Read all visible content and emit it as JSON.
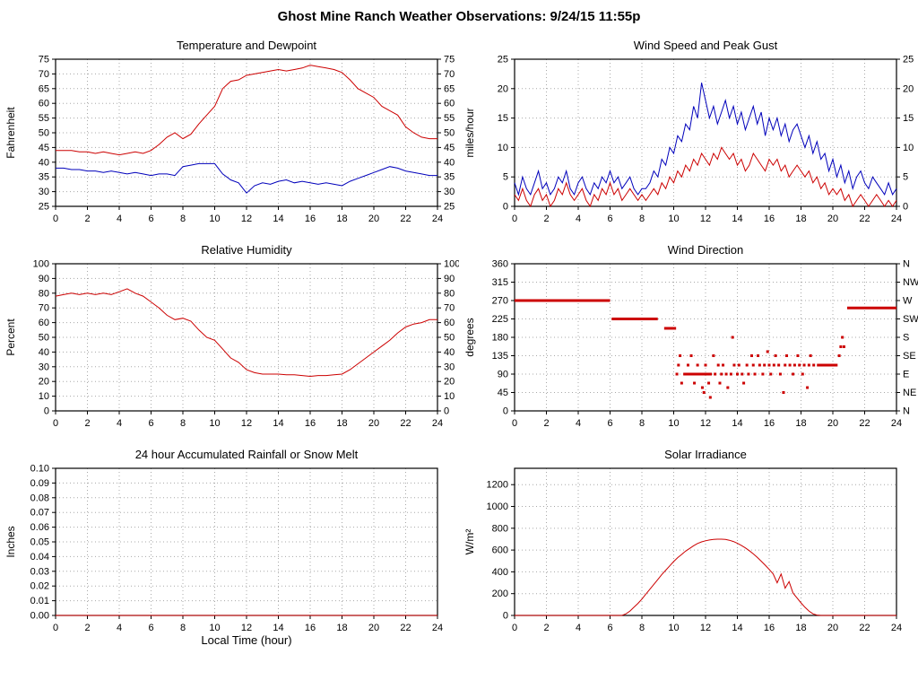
{
  "title": "Ghost Mine Ranch Weather Observations: 9/24/15 11:55p",
  "chart_data": [
    {
      "type": "line",
      "title": "Temperature and Dewpoint",
      "ylabel": "Fahrenheit",
      "xlabel": "",
      "xlim": [
        0,
        24
      ],
      "ylim": [
        25,
        75
      ],
      "xticks": [
        0,
        2,
        4,
        6,
        8,
        10,
        12,
        14,
        16,
        18,
        20,
        22,
        24
      ],
      "ytick_values": [
        25,
        30,
        35,
        40,
        45,
        50,
        55,
        60,
        65,
        70,
        75
      ],
      "ytick_labels": [
        "25",
        "30",
        "35",
        "40",
        "45",
        "50",
        "55",
        "60",
        "65",
        "70",
        "75"
      ],
      "right_tick_labels": [
        "25",
        "30",
        "35",
        "40",
        "45",
        "50",
        "55",
        "60",
        "65",
        "70",
        "75"
      ],
      "series": [
        {
          "name": "Temperature",
          "color": "#cc0000",
          "x0": 0,
          "dx": 0.5,
          "y": [
            44,
            44,
            44,
            43.5,
            43.5,
            43,
            43.5,
            43,
            42.5,
            43,
            43.5,
            43,
            44,
            46,
            48.5,
            50,
            48,
            49.5,
            53,
            56,
            59,
            65,
            67.5,
            68,
            69.5,
            70,
            70.5,
            71,
            71.5,
            71,
            71.5,
            72,
            73,
            72.5,
            72,
            71.5,
            70.5,
            68,
            65,
            63.5,
            62,
            59,
            57.5,
            56,
            52,
            50,
            48.5,
            48,
            48
          ]
        },
        {
          "name": "Dewpoint",
          "color": "#0000bb",
          "x0": 0,
          "dx": 0.5,
          "y": [
            38,
            38,
            37.5,
            37.5,
            37,
            37,
            36.5,
            37,
            36.5,
            36,
            36.5,
            36,
            35.5,
            36,
            36,
            35.5,
            38.5,
            39,
            39.5,
            39.5,
            39.5,
            36,
            34,
            33,
            29.5,
            32,
            33,
            32.5,
            33.5,
            34,
            33,
            33.5,
            33,
            32.5,
            33,
            32.5,
            32,
            33.5,
            34.5,
            35.5,
            36.5,
            37.5,
            38.5,
            38,
            37,
            36.5,
            36,
            35.5,
            35.5
          ]
        }
      ]
    },
    {
      "type": "line",
      "title": "Wind Speed and Peak Gust",
      "ylabel": "miles/hour",
      "xlabel": "",
      "xlim": [
        0,
        24
      ],
      "ylim": [
        0,
        25
      ],
      "xticks": [
        0,
        2,
        4,
        6,
        8,
        10,
        12,
        14,
        16,
        18,
        20,
        22,
        24
      ],
      "ytick_values": [
        0,
        5,
        10,
        15,
        20,
        25
      ],
      "ytick_labels": [
        "0",
        "5",
        "10",
        "15",
        "20",
        "25"
      ],
      "right_tick_labels": [
        "0",
        "5",
        "10",
        "15",
        "20",
        "25"
      ],
      "series": [
        {
          "name": "Peak Gust",
          "color": "#0000bb",
          "x0": 0,
          "dx": 0.25,
          "y": [
            4,
            2,
            5,
            3,
            2,
            4,
            6,
            3,
            4,
            2,
            3,
            5,
            4,
            6,
            3,
            2,
            4,
            5,
            3,
            2,
            4,
            3,
            5,
            4,
            6,
            4,
            5,
            3,
            4,
            5,
            3,
            2,
            3,
            3,
            4,
            6,
            5,
            8,
            7,
            10,
            9,
            12,
            11,
            14,
            13,
            17,
            15,
            21,
            18,
            15,
            17,
            14,
            16,
            18,
            15,
            17,
            14,
            16,
            13,
            15,
            17,
            14,
            16,
            12,
            15,
            13,
            15,
            12,
            14,
            11,
            13,
            14,
            12,
            10,
            12,
            9,
            11,
            8,
            9,
            6,
            8,
            5,
            7,
            4,
            6,
            3,
            5,
            6,
            4,
            3,
            5,
            4,
            3,
            2,
            4,
            2,
            3
          ]
        },
        {
          "name": "Wind Speed",
          "color": "#cc0000",
          "x0": 0,
          "dx": 0.25,
          "y": [
            2,
            1,
            3,
            1,
            0,
            2,
            3,
            1,
            2,
            0,
            1,
            3,
            2,
            4,
            2,
            1,
            2,
            3,
            1,
            0,
            2,
            1,
            3,
            2,
            4,
            2,
            3,
            1,
            2,
            3,
            2,
            1,
            2,
            1,
            2,
            3,
            2,
            4,
            3,
            5,
            4,
            6,
            5,
            7,
            6,
            8,
            7,
            9,
            8,
            7,
            9,
            8,
            10,
            9,
            8,
            9,
            7,
            8,
            6,
            7,
            9,
            8,
            7,
            6,
            8,
            7,
            8,
            6,
            7,
            5,
            6,
            7,
            6,
            5,
            6,
            4,
            5,
            3,
            4,
            2,
            3,
            2,
            3,
            1,
            2,
            0,
            1,
            2,
            1,
            0,
            1,
            2,
            1,
            0,
            1,
            0,
            1
          ]
        }
      ]
    },
    {
      "type": "line",
      "title": "Relative Humidity",
      "ylabel": "Percent",
      "xlabel": "",
      "xlim": [
        0,
        24
      ],
      "ylim": [
        0,
        100
      ],
      "xticks": [
        0,
        2,
        4,
        6,
        8,
        10,
        12,
        14,
        16,
        18,
        20,
        22,
        24
      ],
      "ytick_values": [
        0,
        10,
        20,
        30,
        40,
        50,
        60,
        70,
        80,
        90,
        100
      ],
      "ytick_labels": [
        "0",
        "10",
        "20",
        "30",
        "40",
        "50",
        "60",
        "70",
        "80",
        "90",
        "100"
      ],
      "right_tick_labels": [
        "0",
        "10",
        "20",
        "30",
        "40",
        "50",
        "60",
        "70",
        "80",
        "90",
        "100"
      ],
      "series": [
        {
          "name": "Relative Humidity",
          "color": "#cc0000",
          "x0": 0,
          "dx": 0.5,
          "y": [
            78,
            79,
            80,
            79,
            80,
            79,
            80,
            79,
            81,
            83,
            80,
            78,
            74,
            70,
            65,
            62,
            63,
            61,
            55,
            50,
            48,
            42,
            36,
            33,
            28,
            26,
            25,
            25,
            25,
            24.5,
            24.5,
            24,
            23.5,
            24,
            24,
            24.5,
            25,
            28,
            32,
            36,
            40,
            44,
            48,
            53,
            57,
            59,
            60,
            62,
            62
          ]
        }
      ]
    },
    {
      "type": "scatter",
      "title": "Wind Direction",
      "ylabel": "degrees",
      "xlabel": "",
      "xlim": [
        0,
        24
      ],
      "ylim": [
        0,
        360
      ],
      "xticks": [
        0,
        2,
        4,
        6,
        8,
        10,
        12,
        14,
        16,
        18,
        20,
        22,
        24
      ],
      "ytick_values": [
        0,
        45,
        90,
        135,
        180,
        225,
        270,
        315,
        360
      ],
      "ytick_labels": [
        "0",
        "45",
        "90",
        "135",
        "180",
        "225",
        "270",
        "315",
        "360"
      ],
      "right_tick_labels": [
        "N",
        "NE",
        "E",
        "SE",
        "S",
        "SW",
        "W",
        "NW",
        "N"
      ],
      "marker_color": "#cc0000",
      "segments": [
        [
          0,
          6,
          270
        ],
        [
          6.1,
          9,
          225
        ],
        [
          9.4,
          10.15,
          202
        ],
        [
          10.6,
          12.4,
          90
        ],
        [
          19,
          20.3,
          112
        ],
        [
          20.9,
          24,
          252
        ]
      ],
      "points": [
        [
          10.2,
          90
        ],
        [
          10.3,
          112
        ],
        [
          10.4,
          135
        ],
        [
          10.5,
          68
        ],
        [
          10.9,
          112
        ],
        [
          11.1,
          135
        ],
        [
          11.3,
          68
        ],
        [
          11.5,
          112
        ],
        [
          11.8,
          57
        ],
        [
          11.9,
          45
        ],
        [
          12,
          112
        ],
        [
          12.2,
          68
        ],
        [
          12.3,
          33
        ],
        [
          12.5,
          135
        ],
        [
          12.6,
          90
        ],
        [
          12.8,
          112
        ],
        [
          12.9,
          68
        ],
        [
          13,
          90
        ],
        [
          13.1,
          112
        ],
        [
          13.3,
          90
        ],
        [
          13.4,
          57
        ],
        [
          13.6,
          90
        ],
        [
          13.7,
          180
        ],
        [
          13.8,
          112
        ],
        [
          14,
          90
        ],
        [
          14.1,
          112
        ],
        [
          14.3,
          90
        ],
        [
          14.4,
          68
        ],
        [
          14.6,
          112
        ],
        [
          14.7,
          90
        ],
        [
          14.9,
          135
        ],
        [
          15,
          112
        ],
        [
          15.1,
          90
        ],
        [
          15.3,
          135
        ],
        [
          15.4,
          112
        ],
        [
          15.6,
          90
        ],
        [
          15.7,
          112
        ],
        [
          15.9,
          145
        ],
        [
          16,
          112
        ],
        [
          16.1,
          90
        ],
        [
          16.3,
          112
        ],
        [
          16.4,
          135
        ],
        [
          16.6,
          112
        ],
        [
          16.7,
          90
        ],
        [
          16.9,
          45
        ],
        [
          17,
          112
        ],
        [
          17.1,
          135
        ],
        [
          17.3,
          112
        ],
        [
          17.5,
          90
        ],
        [
          17.6,
          112
        ],
        [
          17.8,
          135
        ],
        [
          17.9,
          112
        ],
        [
          18.1,
          90
        ],
        [
          18.2,
          112
        ],
        [
          18.4,
          57
        ],
        [
          18.5,
          112
        ],
        [
          18.6,
          135
        ],
        [
          18.8,
          112
        ],
        [
          20.4,
          135
        ],
        [
          20.5,
          157
        ],
        [
          20.6,
          180
        ],
        [
          20.7,
          157
        ]
      ]
    },
    {
      "type": "line",
      "title": "24 hour Accumulated Rainfall or Snow Melt",
      "ylabel": "Inches",
      "xlabel": "Local Time (hour)",
      "xlim": [
        0,
        24
      ],
      "ylim": [
        0,
        0.1
      ],
      "xticks": [
        0,
        2,
        4,
        6,
        8,
        10,
        12,
        14,
        16,
        18,
        20,
        22,
        24
      ],
      "ytick_values": [
        0,
        0.01,
        0.02,
        0.03,
        0.04,
        0.05,
        0.06,
        0.07,
        0.08,
        0.09,
        0.1
      ],
      "ytick_labels": [
        "0.00",
        "0.01",
        "0.02",
        "0.03",
        "0.04",
        "0.05",
        "0.06",
        "0.07",
        "0.08",
        "0.09",
        "0.10"
      ],
      "right_tick_labels": null,
      "series": [
        {
          "name": "Accumulated Rainfall",
          "color": "#cc0000",
          "x0": 0,
          "dx": 24,
          "y": [
            0,
            0
          ]
        }
      ]
    },
    {
      "type": "line",
      "title": "Solar Irradiance",
      "ylabel": "W/m²",
      "xlabel": "",
      "xlim": [
        0,
        24
      ],
      "ylim": [
        0,
        1350
      ],
      "xticks": [
        0,
        2,
        4,
        6,
        8,
        10,
        12,
        14,
        16,
        18,
        20,
        22,
        24
      ],
      "ytick_values": [
        0,
        200,
        400,
        600,
        800,
        1000,
        1200
      ],
      "ytick_labels": [
        "0",
        "200",
        "400",
        "600",
        "800",
        "1000",
        "1200"
      ],
      "right_tick_labels": null,
      "series": [
        {
          "name": "Solar Irradiance",
          "color": "#cc0000",
          "x0": 0,
          "dx": 0.25,
          "y": [
            0,
            0,
            0,
            0,
            0,
            0,
            0,
            0,
            0,
            0,
            0,
            0,
            0,
            0,
            0,
            0,
            0,
            0,
            0,
            0,
            0,
            0,
            0,
            0,
            0,
            0,
            0,
            0,
            15,
            40,
            75,
            110,
            150,
            195,
            240,
            285,
            330,
            375,
            415,
            455,
            495,
            530,
            560,
            590,
            615,
            640,
            660,
            675,
            685,
            692,
            698,
            700,
            700,
            697,
            690,
            678,
            662,
            643,
            620,
            594,
            565,
            533,
            498,
            461,
            422,
            381,
            300,
            380,
            250,
            310,
            205,
            160,
            115,
            75,
            40,
            15,
            3,
            0,
            0,
            0,
            0,
            0,
            0,
            0,
            0,
            0,
            0,
            0,
            0,
            0,
            0,
            0,
            0,
            0,
            0,
            0,
            0
          ]
        }
      ]
    }
  ]
}
